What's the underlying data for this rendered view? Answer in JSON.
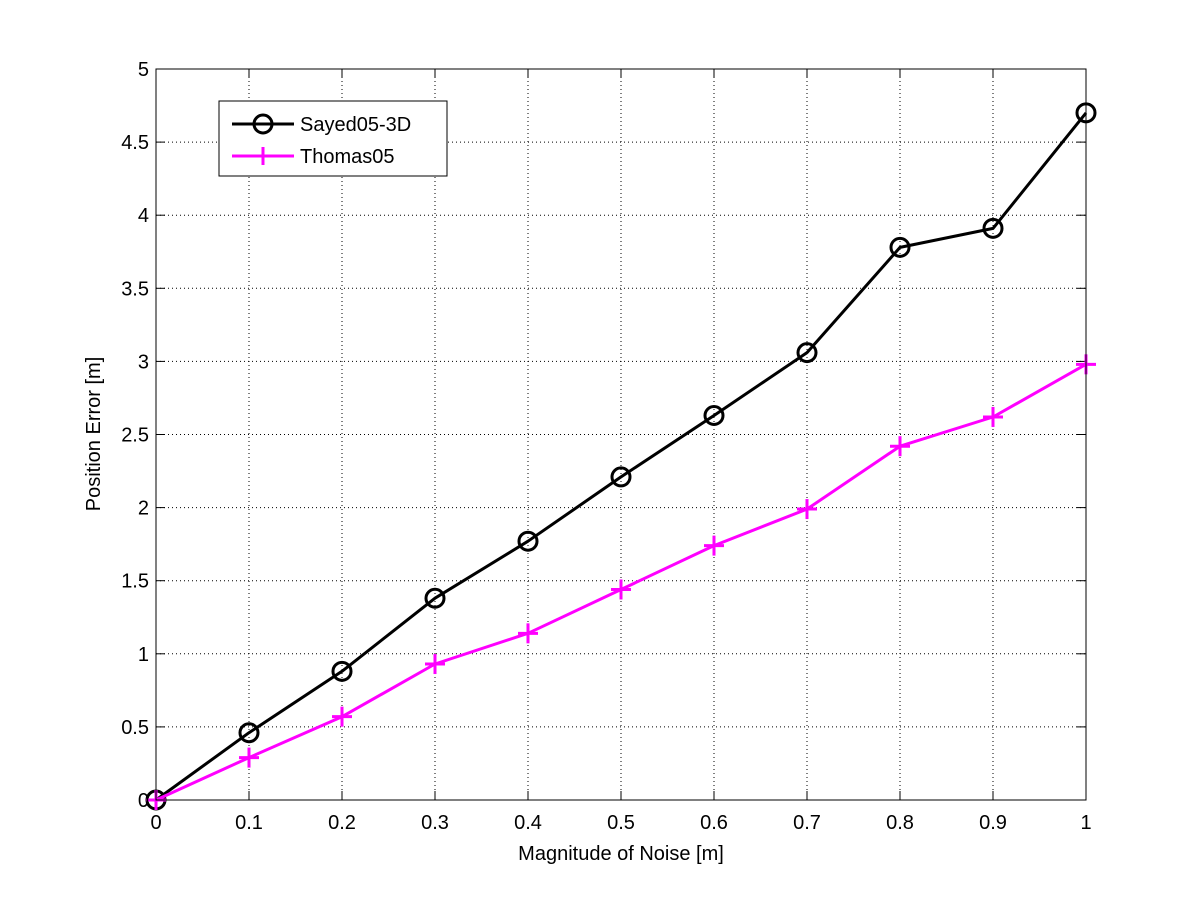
{
  "chart_data": {
    "type": "line",
    "title": "",
    "xlabel": "Magnitude of Noise [m]",
    "ylabel": "Position Error [m]",
    "xlim": [
      0,
      1
    ],
    "ylim": [
      0,
      5
    ],
    "xticks": [
      0,
      0.1,
      0.2,
      0.3,
      0.4,
      0.5,
      0.6,
      0.7,
      0.8,
      0.9,
      1
    ],
    "xtick_labels": [
      "0",
      "0.1",
      "0.2",
      "0.3",
      "0.4",
      "0.5",
      "0.6",
      "0.7",
      "0.8",
      "0.9",
      "1"
    ],
    "yticks": [
      0,
      0.5,
      1,
      1.5,
      2,
      2.5,
      3,
      3.5,
      4,
      4.5,
      5
    ],
    "ytick_labels": [
      "0",
      "0.5",
      "1",
      "1.5",
      "2",
      "2.5",
      "3",
      "3.5",
      "4",
      "4.5",
      "5"
    ],
    "grid": true,
    "grid_style": "dotted",
    "legend_position": "top-left",
    "x": [
      0,
      0.1,
      0.2,
      0.3,
      0.4,
      0.5,
      0.6,
      0.7,
      0.8,
      0.9,
      1.0
    ],
    "series": [
      {
        "name": "Sayed05-3D",
        "color": "#000000",
        "marker": "circle",
        "values": [
          0.0,
          0.46,
          0.88,
          1.38,
          1.77,
          2.21,
          2.63,
          3.06,
          3.78,
          3.91,
          4.7
        ]
      },
      {
        "name": "Thomas05",
        "color": "#ff00ff",
        "marker": "plus",
        "values": [
          0.0,
          0.29,
          0.57,
          0.93,
          1.14,
          1.44,
          1.74,
          1.99,
          2.42,
          2.62,
          2.98
        ]
      }
    ]
  }
}
